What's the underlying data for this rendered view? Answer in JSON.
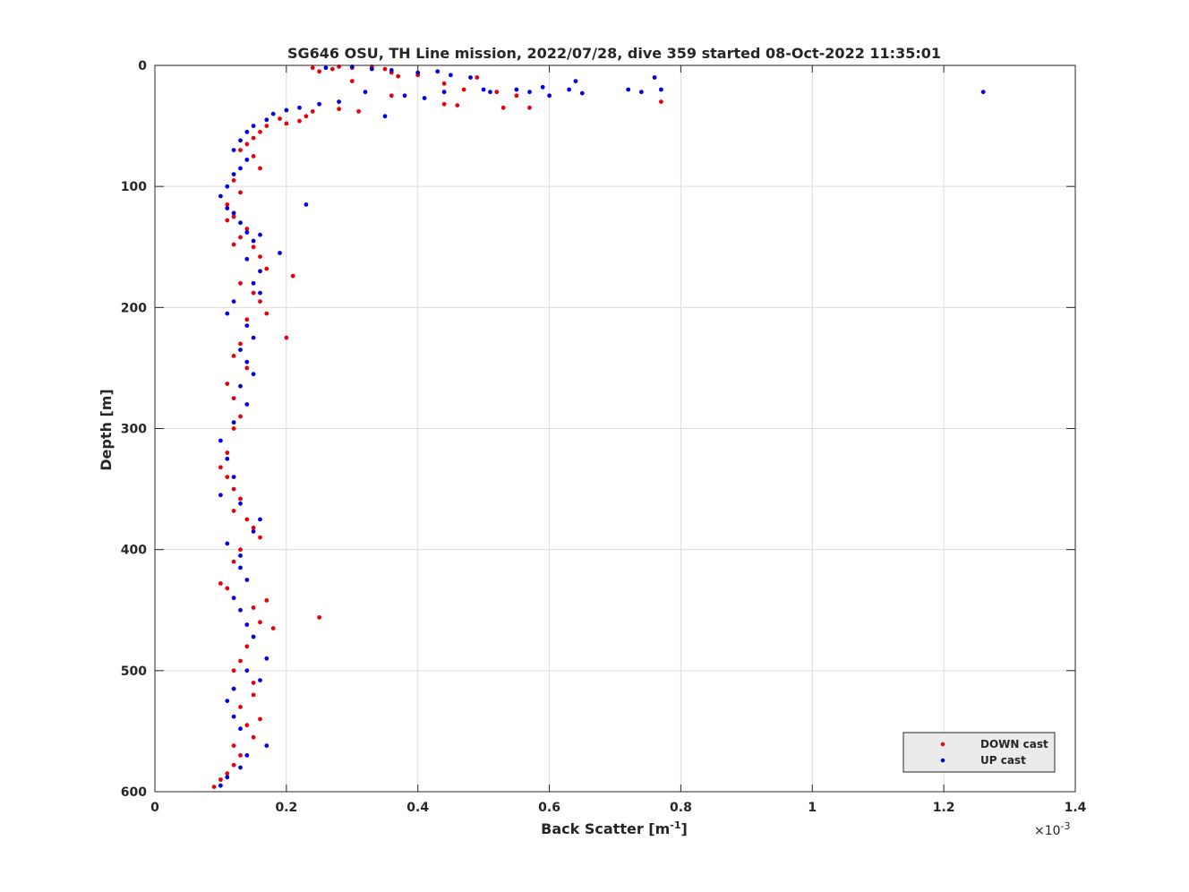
{
  "chart_data": {
    "type": "scatter",
    "title": "SG646 OSU, TH Line mission, 2022/07/28, dive 359 started 08-Oct-2022 11:35:01",
    "xlabel": "Back Scatter [m",
    "xlabel_sup": "-1",
    "xlabel_suffix": "]",
    "ylabel": "Depth [m]",
    "x_exponent_label": "×10",
    "x_exponent_sup": "-3",
    "x_scale": 0.001,
    "xlim": [
      0,
      1.4
    ],
    "ylim": [
      0,
      600
    ],
    "y_reversed": true,
    "grid": true,
    "x_ticks": [
      0,
      0.2,
      0.4,
      0.6,
      0.8,
      1,
      1.2,
      1.4
    ],
    "x_tick_labels": [
      "0",
      "0.2",
      "0.4",
      "0.6",
      "0.8",
      "1",
      "1.2",
      "1.4"
    ],
    "y_ticks": [
      0,
      100,
      200,
      300,
      400,
      500,
      600
    ],
    "y_tick_labels": [
      "0",
      "100",
      "200",
      "300",
      "400",
      "500",
      "600"
    ],
    "legend_position": "bottom-right",
    "series": [
      {
        "name": "DOWN cast",
        "color": "#e8000b",
        "points": [
          [
            0.24,
            2
          ],
          [
            0.25,
            5
          ],
          [
            0.27,
            3
          ],
          [
            0.28,
            1
          ],
          [
            0.3,
            2
          ],
          [
            0.33,
            1
          ],
          [
            0.35,
            3
          ],
          [
            0.36,
            6
          ],
          [
            0.37,
            9
          ],
          [
            0.4,
            8
          ],
          [
            0.44,
            15
          ],
          [
            0.47,
            20
          ],
          [
            0.52,
            22
          ],
          [
            0.55,
            25
          ],
          [
            0.77,
            30
          ],
          [
            0.49,
            10
          ],
          [
            0.53,
            35
          ],
          [
            0.57,
            35
          ],
          [
            0.36,
            25
          ],
          [
            0.3,
            13
          ],
          [
            0.28,
            36
          ],
          [
            0.31,
            38
          ],
          [
            0.44,
            32
          ],
          [
            0.46,
            33
          ],
          [
            0.24,
            38
          ],
          [
            0.23,
            42
          ],
          [
            0.22,
            46
          ],
          [
            0.2,
            48
          ],
          [
            0.19,
            44
          ],
          [
            0.17,
            50
          ],
          [
            0.16,
            55
          ],
          [
            0.15,
            60
          ],
          [
            0.14,
            65
          ],
          [
            0.13,
            70
          ],
          [
            0.15,
            75
          ],
          [
            0.16,
            85
          ],
          [
            0.12,
            95
          ],
          [
            0.13,
            105
          ],
          [
            0.11,
            115
          ],
          [
            0.12,
            125
          ],
          [
            0.11,
            128
          ],
          [
            0.14,
            135
          ],
          [
            0.13,
            142
          ],
          [
            0.12,
            148
          ],
          [
            0.15,
            150
          ],
          [
            0.16,
            158
          ],
          [
            0.17,
            168
          ],
          [
            0.21,
            174
          ],
          [
            0.13,
            180
          ],
          [
            0.15,
            188
          ],
          [
            0.16,
            195
          ],
          [
            0.17,
            205
          ],
          [
            0.14,
            210
          ],
          [
            0.2,
            225
          ],
          [
            0.13,
            230
          ],
          [
            0.12,
            240
          ],
          [
            0.14,
            250
          ],
          [
            0.11,
            263
          ],
          [
            0.12,
            275
          ],
          [
            0.13,
            290
          ],
          [
            0.12,
            300
          ],
          [
            0.11,
            320
          ],
          [
            0.1,
            332
          ],
          [
            0.11,
            340
          ],
          [
            0.12,
            350
          ],
          [
            0.13,
            358
          ],
          [
            0.12,
            368
          ],
          [
            0.14,
            375
          ],
          [
            0.15,
            382
          ],
          [
            0.16,
            390
          ],
          [
            0.13,
            400
          ],
          [
            0.12,
            410
          ],
          [
            0.1,
            428
          ],
          [
            0.11,
            432
          ],
          [
            0.15,
            448
          ],
          [
            0.17,
            442
          ],
          [
            0.25,
            456
          ],
          [
            0.16,
            460
          ],
          [
            0.18,
            465
          ],
          [
            0.14,
            480
          ],
          [
            0.13,
            492
          ],
          [
            0.12,
            500
          ],
          [
            0.15,
            510
          ],
          [
            0.12,
            515
          ],
          [
            0.15,
            520
          ],
          [
            0.13,
            530
          ],
          [
            0.16,
            540
          ],
          [
            0.14,
            545
          ],
          [
            0.15,
            555
          ],
          [
            0.12,
            562
          ],
          [
            0.13,
            570
          ],
          [
            0.12,
            578
          ],
          [
            0.11,
            585
          ],
          [
            0.1,
            590
          ],
          [
            0.09,
            596
          ]
        ]
      },
      {
        "name": "UP cast",
        "color": "#0000e0",
        "points": [
          [
            0.26,
            2
          ],
          [
            0.3,
            1
          ],
          [
            0.33,
            3
          ],
          [
            0.36,
            4
          ],
          [
            0.4,
            6
          ],
          [
            0.43,
            5
          ],
          [
            0.45,
            8
          ],
          [
            0.48,
            10
          ],
          [
            0.5,
            20
          ],
          [
            0.51,
            22
          ],
          [
            0.55,
            20
          ],
          [
            0.57,
            22
          ],
          [
            0.59,
            18
          ],
          [
            0.6,
            25
          ],
          [
            0.63,
            20
          ],
          [
            0.65,
            23
          ],
          [
            0.64,
            13
          ],
          [
            0.72,
            20
          ],
          [
            0.74,
            22
          ],
          [
            0.76,
            10
          ],
          [
            0.77,
            20
          ],
          [
            1.26,
            22
          ],
          [
            0.35,
            42
          ],
          [
            0.38,
            25
          ],
          [
            0.41,
            27
          ],
          [
            0.44,
            22
          ],
          [
            0.32,
            22
          ],
          [
            0.28,
            30
          ],
          [
            0.25,
            32
          ],
          [
            0.22,
            35
          ],
          [
            0.2,
            37
          ],
          [
            0.18,
            40
          ],
          [
            0.17,
            45
          ],
          [
            0.15,
            50
          ],
          [
            0.14,
            55
          ],
          [
            0.13,
            62
          ],
          [
            0.12,
            70
          ],
          [
            0.14,
            78
          ],
          [
            0.13,
            85
          ],
          [
            0.12,
            90
          ],
          [
            0.11,
            100
          ],
          [
            0.1,
            108
          ],
          [
            0.11,
            118
          ],
          [
            0.23,
            115
          ],
          [
            0.12,
            122
          ],
          [
            0.13,
            130
          ],
          [
            0.14,
            138
          ],
          [
            0.15,
            145
          ],
          [
            0.16,
            140
          ],
          [
            0.19,
            155
          ],
          [
            0.14,
            160
          ],
          [
            0.16,
            170
          ],
          [
            0.15,
            180
          ],
          [
            0.16,
            188
          ],
          [
            0.12,
            195
          ],
          [
            0.11,
            205
          ],
          [
            0.14,
            215
          ],
          [
            0.15,
            225
          ],
          [
            0.13,
            235
          ],
          [
            0.14,
            245
          ],
          [
            0.15,
            255
          ],
          [
            0.13,
            265
          ],
          [
            0.14,
            280
          ],
          [
            0.12,
            295
          ],
          [
            0.1,
            310
          ],
          [
            0.11,
            325
          ],
          [
            0.12,
            340
          ],
          [
            0.1,
            355
          ],
          [
            0.13,
            362
          ],
          [
            0.16,
            375
          ],
          [
            0.15,
            385
          ],
          [
            0.11,
            395
          ],
          [
            0.13,
            405
          ],
          [
            0.13,
            415
          ],
          [
            0.14,
            425
          ],
          [
            0.12,
            440
          ],
          [
            0.13,
            450
          ],
          [
            0.14,
            462
          ],
          [
            0.15,
            472
          ],
          [
            0.17,
            490
          ],
          [
            0.14,
            500
          ],
          [
            0.16,
            508
          ],
          [
            0.12,
            515
          ],
          [
            0.11,
            525
          ],
          [
            0.12,
            538
          ],
          [
            0.13,
            548
          ],
          [
            0.17,
            562
          ],
          [
            0.14,
            570
          ],
          [
            0.13,
            580
          ],
          [
            0.11,
            588
          ],
          [
            0.1,
            595
          ]
        ]
      }
    ]
  }
}
